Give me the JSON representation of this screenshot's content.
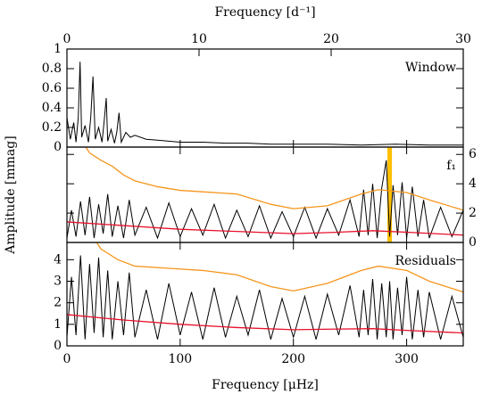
{
  "chart_data": [
    {
      "type": "line",
      "x2label": "Frequency [d⁻¹]",
      "x2lim": [
        0,
        30
      ],
      "x2ticks": [
        0,
        10,
        20,
        30
      ],
      "xlim": [
        0,
        350
      ],
      "xticks": [
        0,
        100,
        200,
        300
      ],
      "ylim": [
        0,
        1
      ],
      "yticks": [
        0,
        0.2,
        0.4,
        0.6,
        0.8,
        1
      ],
      "annotation": "Window",
      "series": [
        {
          "color": "#000000",
          "x": [
            0,
            3,
            6,
            8,
            10,
            11.6,
            13,
            16,
            19,
            21,
            23,
            25,
            28,
            31,
            33,
            34.7,
            36,
            39,
            42,
            44,
            46,
            48,
            52,
            56,
            60,
            70,
            80,
            90,
            100,
            120,
            140,
            160,
            180,
            200,
            230,
            260,
            290,
            320,
            350
          ],
          "values": [
            0.3,
            0.08,
            0.25,
            0.05,
            0.3,
            0.87,
            0.1,
            0.22,
            0.05,
            0.3,
            0.72,
            0.08,
            0.2,
            0.05,
            0.28,
            0.5,
            0.06,
            0.18,
            0.04,
            0.15,
            0.35,
            0.05,
            0.15,
            0.1,
            0.12,
            0.08,
            0.07,
            0.06,
            0.05,
            0.05,
            0.04,
            0.04,
            0.03,
            0.03,
            0.03,
            0.02,
            0.03,
            0.02,
            0.02
          ]
        }
      ]
    },
    {
      "type": "line",
      "ylabel": "Amplitude [mmag]",
      "xlim": [
        0,
        350
      ],
      "xticks": [
        0,
        100,
        200,
        300
      ],
      "ylim": [
        0,
        6.5
      ],
      "yticks": [
        0,
        2,
        4,
        6
      ],
      "ytick_side": "right",
      "annotation": "f₁",
      "highlight": {
        "x": [
          283,
          287
        ],
        "color": "#ffc000"
      },
      "series": [
        {
          "color": "#000000",
          "x": [
            0,
            4,
            8,
            12,
            16,
            20,
            24,
            28,
            32,
            36,
            40,
            45,
            50,
            55,
            60,
            70,
            80,
            90,
            100,
            110,
            120,
            130,
            140,
            150,
            160,
            170,
            180,
            190,
            200,
            210,
            220,
            230,
            240,
            250,
            258,
            262,
            266,
            270,
            274,
            278,
            282,
            285,
            288,
            292,
            296,
            300,
            305,
            310,
            315,
            320,
            330,
            340,
            350
          ],
          "values": [
            0.3,
            2.2,
            0.4,
            2.8,
            0.5,
            3.1,
            0.3,
            2.6,
            0.6,
            3.3,
            0.4,
            2.5,
            0.3,
            2.9,
            0.5,
            2.4,
            0.3,
            2.7,
            0.4,
            2.3,
            0.5,
            2.6,
            0.3,
            2.2,
            0.4,
            2.5,
            0.3,
            2.1,
            0.4,
            2.4,
            0.3,
            2.3,
            0.5,
            2.9,
            0.4,
            3.6,
            0.5,
            4.0,
            0.3,
            3.7,
            5.6,
            0.4,
            3.9,
            0.5,
            4.1,
            0.3,
            3.8,
            0.4,
            2.9,
            0.3,
            2.4,
            0.4,
            2.2
          ]
        },
        {
          "color": "#f5961e",
          "x": [
            15,
            20,
            30,
            40,
            50,
            60,
            80,
            100,
            120,
            150,
            180,
            200,
            230,
            260,
            275,
            300,
            320,
            350
          ],
          "values": [
            6.7,
            6.1,
            5.6,
            5.2,
            4.6,
            4.2,
            3.8,
            3.55,
            3.45,
            3.3,
            2.6,
            2.3,
            2.5,
            3.3,
            3.6,
            3.4,
            2.9,
            2.2
          ]
        },
        {
          "color": "#e8102a",
          "x": [
            0,
            50,
            100,
            150,
            200,
            240,
            270,
            300,
            350
          ],
          "values": [
            1.4,
            1.15,
            0.9,
            0.75,
            0.6,
            0.7,
            0.8,
            0.7,
            0.5
          ]
        }
      ]
    },
    {
      "type": "line",
      "xlabel": "Frequency [μHz]",
      "xlim": [
        0,
        350
      ],
      "xticks": [
        0,
        100,
        200,
        300
      ],
      "ylim": [
        0,
        4.8
      ],
      "yticks": [
        0,
        1,
        2,
        3,
        4
      ],
      "annotation": "Residuals",
      "series": [
        {
          "color": "#000000",
          "x": [
            0,
            4,
            8,
            12,
            16,
            20,
            24,
            28,
            32,
            36,
            40,
            45,
            50,
            55,
            60,
            70,
            80,
            90,
            100,
            110,
            120,
            130,
            140,
            150,
            160,
            170,
            180,
            190,
            200,
            210,
            220,
            230,
            240,
            250,
            258,
            262,
            266,
            270,
            274,
            278,
            282,
            285,
            288,
            292,
            296,
            300,
            305,
            310,
            315,
            320,
            330,
            340,
            350
          ],
          "values": [
            0.4,
            3.2,
            0.5,
            4.2,
            0.3,
            3.8,
            0.6,
            4.1,
            0.4,
            3.5,
            0.3,
            3.0,
            0.5,
            3.4,
            0.4,
            2.6,
            0.3,
            2.9,
            0.5,
            2.5,
            0.3,
            2.7,
            0.4,
            2.3,
            0.5,
            2.6,
            0.3,
            2.2,
            0.4,
            2.3,
            0.3,
            2.4,
            0.5,
            2.8,
            0.4,
            2.6,
            0.5,
            3.1,
            0.3,
            2.9,
            0.4,
            3.0,
            0.3,
            2.7,
            0.5,
            3.2,
            0.3,
            2.6,
            0.4,
            2.5,
            0.3,
            2.3,
            0.4
          ]
        },
        {
          "color": "#f5961e",
          "x": [
            25,
            30,
            45,
            60,
            90,
            120,
            150,
            180,
            200,
            230,
            260,
            275,
            300,
            320,
            350
          ],
          "values": [
            4.9,
            4.5,
            4.0,
            3.7,
            3.6,
            3.5,
            3.3,
            2.75,
            2.55,
            2.9,
            3.5,
            3.7,
            3.5,
            3.0,
            2.5
          ]
        },
        {
          "color": "#e8102a",
          "x": [
            0,
            50,
            100,
            150,
            200,
            240,
            270,
            300,
            350
          ],
          "values": [
            1.45,
            1.2,
            1.0,
            0.85,
            0.75,
            0.78,
            0.8,
            0.72,
            0.6
          ]
        }
      ]
    }
  ]
}
